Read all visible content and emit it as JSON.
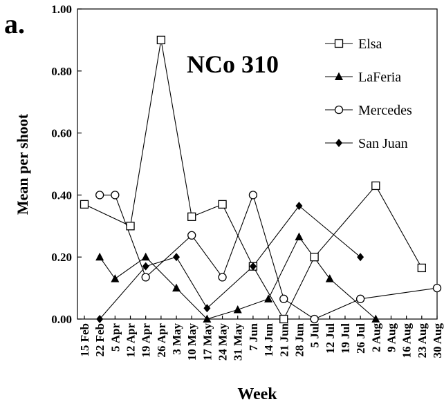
{
  "chart_data": {
    "type": "line",
    "panel_label": "a.",
    "title": "NCo 310",
    "xlabel": "Week",
    "ylabel": "Mean per shoot",
    "ylim": [
      0,
      1.0
    ],
    "yticks": [
      "0.00",
      "0.20",
      "0.40",
      "0.60",
      "0.80",
      "1.00"
    ],
    "categories": [
      "15 Feb",
      "22 Feb",
      "5 Apr",
      "12 Apr",
      "19 Apr",
      "26 Apr",
      "3 May",
      "10 May",
      "17 May",
      "24 May",
      "31 May",
      "7 Jun",
      "14 Jun",
      "21 Jun",
      "28 Jun",
      "5 Jul",
      "12 Jul",
      "19 Jul",
      "26 Jul",
      "2 Aug",
      "9 Aug",
      "16 Aug",
      "23 Aug",
      "30 Aug"
    ],
    "grid": false,
    "legend_position": "top-right",
    "series": [
      {
        "name": "Elsa",
        "marker": "open-square",
        "values": [
          0.37,
          null,
          null,
          0.3,
          null,
          0.9,
          null,
          0.33,
          null,
          0.37,
          null,
          0.17,
          null,
          0.0,
          null,
          0.2,
          null,
          null,
          null,
          0.43,
          null,
          null,
          0.165,
          null
        ]
      },
      {
        "name": "LaFeria",
        "marker": "filled-triangle",
        "values": [
          null,
          0.2,
          0.13,
          null,
          0.2,
          null,
          0.1,
          null,
          0.0,
          null,
          0.03,
          null,
          0.065,
          null,
          0.265,
          null,
          0.13,
          null,
          null,
          0.0,
          null,
          null,
          null,
          null
        ]
      },
      {
        "name": "Mercedes",
        "marker": "open-circle",
        "values": [
          null,
          0.4,
          0.4,
          null,
          0.135,
          null,
          null,
          0.27,
          null,
          0.135,
          null,
          0.4,
          null,
          0.065,
          null,
          0.0,
          null,
          null,
          0.065,
          null,
          null,
          null,
          null,
          0.1
        ]
      },
      {
        "name": "San Juan",
        "marker": "filled-diamond",
        "values": [
          null,
          0.0,
          null,
          null,
          0.17,
          null,
          0.2,
          null,
          0.035,
          null,
          null,
          0.17,
          null,
          null,
          0.365,
          null,
          null,
          null,
          0.2,
          null,
          null,
          null,
          null,
          null
        ]
      }
    ]
  }
}
